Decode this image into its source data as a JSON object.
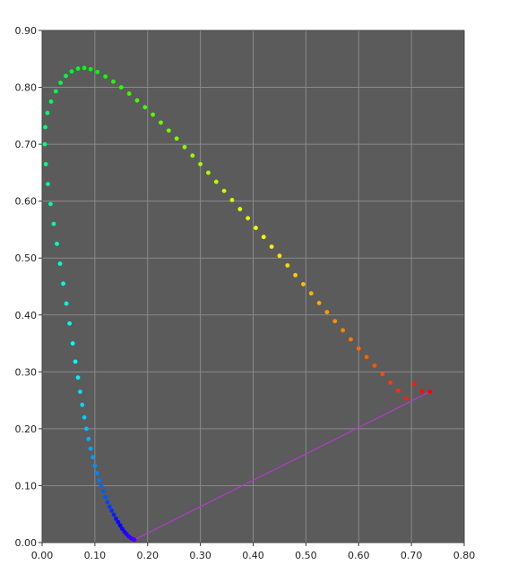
{
  "chart_data": {
    "type": "scatter",
    "title": "",
    "xlabel": "",
    "ylabel": "",
    "xlim": [
      0.0,
      0.8
    ],
    "ylim": [
      0.0,
      0.9
    ],
    "x_ticks": [
      "0.00",
      "0.10",
      "0.20",
      "0.30",
      "0.40",
      "0.50",
      "0.60",
      "0.70",
      "0.80"
    ],
    "y_ticks": [
      "0.00",
      "0.10",
      "0.20",
      "0.30",
      "0.40",
      "0.50",
      "0.60",
      "0.70",
      "0.80",
      "0.90"
    ],
    "grid": true,
    "background_color": "#5b5b5b",
    "grid_color": "#8a8a8a",
    "purple_line_color": "#b03cc8",
    "series": [
      {
        "type": "scatter",
        "points": [
          [
            0.175,
            0.005
          ],
          [
            0.172,
            0.006
          ],
          [
            0.168,
            0.008
          ],
          [
            0.164,
            0.011
          ],
          [
            0.16,
            0.015
          ],
          [
            0.156,
            0.019
          ],
          [
            0.152,
            0.024
          ],
          [
            0.148,
            0.03
          ],
          [
            0.144,
            0.036
          ],
          [
            0.14,
            0.042
          ],
          [
            0.136,
            0.049
          ],
          [
            0.132,
            0.056
          ],
          [
            0.128,
            0.063
          ],
          [
            0.124,
            0.071
          ],
          [
            0.12,
            0.08
          ],
          [
            0.116,
            0.09
          ],
          [
            0.112,
            0.1
          ],
          [
            0.108,
            0.11
          ],
          [
            0.104,
            0.122
          ],
          [
            0.1,
            0.135
          ],
          [
            0.096,
            0.15
          ],
          [
            0.092,
            0.165
          ],
          [
            0.088,
            0.182
          ],
          [
            0.084,
            0.2
          ],
          [
            0.08,
            0.22
          ],
          [
            0.076,
            0.242
          ],
          [
            0.072,
            0.265
          ],
          [
            0.068,
            0.29
          ],
          [
            0.063,
            0.318
          ],
          [
            0.058,
            0.35
          ],
          [
            0.052,
            0.385
          ],
          [
            0.046,
            0.42
          ],
          [
            0.04,
            0.455
          ],
          [
            0.034,
            0.49
          ],
          [
            0.028,
            0.525
          ],
          [
            0.022,
            0.56
          ],
          [
            0.016,
            0.595
          ],
          [
            0.011,
            0.63
          ],
          [
            0.007,
            0.665
          ],
          [
            0.005,
            0.7
          ],
          [
            0.006,
            0.73
          ],
          [
            0.01,
            0.755
          ],
          [
            0.017,
            0.775
          ],
          [
            0.026,
            0.793
          ],
          [
            0.035,
            0.808
          ],
          [
            0.045,
            0.82
          ],
          [
            0.056,
            0.828
          ],
          [
            0.068,
            0.833
          ],
          [
            0.08,
            0.834
          ],
          [
            0.092,
            0.832
          ],
          [
            0.105,
            0.827
          ],
          [
            0.12,
            0.819
          ],
          [
            0.135,
            0.81
          ],
          [
            0.15,
            0.8
          ],
          [
            0.165,
            0.789
          ],
          [
            0.18,
            0.777
          ],
          [
            0.195,
            0.765
          ],
          [
            0.21,
            0.752
          ],
          [
            0.225,
            0.738
          ],
          [
            0.24,
            0.724
          ],
          [
            0.255,
            0.71
          ],
          [
            0.27,
            0.695
          ],
          [
            0.285,
            0.68
          ],
          [
            0.3,
            0.665
          ],
          [
            0.315,
            0.65
          ],
          [
            0.33,
            0.634
          ],
          [
            0.345,
            0.618
          ],
          [
            0.36,
            0.602
          ],
          [
            0.375,
            0.586
          ],
          [
            0.39,
            0.57
          ],
          [
            0.405,
            0.553
          ],
          [
            0.42,
            0.537
          ],
          [
            0.435,
            0.52
          ],
          [
            0.45,
            0.504
          ],
          [
            0.465,
            0.487
          ],
          [
            0.48,
            0.47
          ],
          [
            0.495,
            0.454
          ],
          [
            0.51,
            0.438
          ],
          [
            0.525,
            0.421
          ],
          [
            0.54,
            0.405
          ],
          [
            0.555,
            0.389
          ],
          [
            0.57,
            0.373
          ],
          [
            0.585,
            0.357
          ],
          [
            0.6,
            0.341
          ],
          [
            0.615,
            0.326
          ],
          [
            0.63,
            0.311
          ],
          [
            0.645,
            0.296
          ],
          [
            0.66,
            0.281
          ],
          [
            0.675,
            0.267
          ],
          [
            0.69,
            0.253
          ],
          [
            0.705,
            0.279
          ],
          [
            0.72,
            0.266
          ],
          [
            0.735,
            0.265
          ]
        ]
      },
      {
        "type": "line",
        "name": "",
        "points": [
          [
            0.175,
            0.005
          ],
          [
            0.735,
            0.265
          ]
        ]
      }
    ]
  }
}
